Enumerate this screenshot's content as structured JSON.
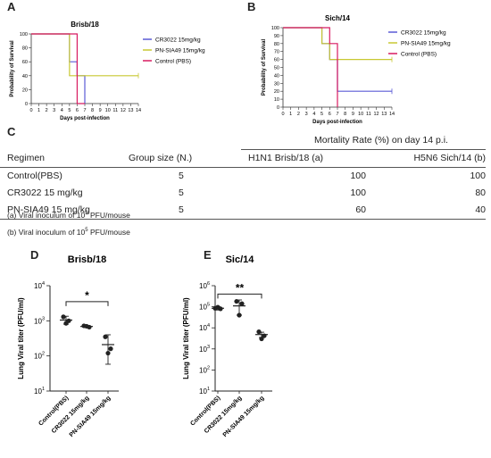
{
  "panels": {
    "a": "A",
    "b": "B",
    "c": "C",
    "d": "D",
    "e": "E"
  },
  "chart_data": [
    {
      "id": "A",
      "type": "line",
      "step": true,
      "title": "Brisb/18",
      "xlabel": "Days post-infection",
      "ylabel": "Probability of Survival",
      "xlim": [
        0,
        14
      ],
      "ylim": [
        0,
        100
      ],
      "xticks": [
        0,
        1,
        2,
        3,
        4,
        5,
        6,
        7,
        8,
        9,
        10,
        11,
        12,
        13,
        14
      ],
      "yticks": [
        0,
        20,
        40,
        60,
        80,
        100
      ],
      "legend_position": "right",
      "series": [
        {
          "name": "CR3022 15mg/kg",
          "color": "#5b5bd6",
          "x": [
            0,
            5,
            5,
            6,
            6,
            7,
            7
          ],
          "y": [
            100,
            100,
            60,
            60,
            40,
            40,
            0
          ]
        },
        {
          "name": "PN-SIA49 15mg/kg",
          "color": "#c8c832",
          "x": [
            0,
            5,
            5,
            14
          ],
          "y": [
            100,
            100,
            40,
            40
          ]
        },
        {
          "name": "Control (PBS)",
          "color": "#d81b60",
          "x": [
            0,
            6,
            6,
            7
          ],
          "y": [
            100,
            100,
            0,
            0
          ]
        }
      ]
    },
    {
      "id": "B",
      "type": "line",
      "step": true,
      "title": "Sich/14",
      "xlabel": "Days post-infection",
      "ylabel": "Probability of Survival",
      "xlim": [
        0,
        14
      ],
      "ylim": [
        0,
        100
      ],
      "xticks": [
        0,
        1,
        2,
        3,
        4,
        5,
        6,
        7,
        8,
        9,
        10,
        11,
        12,
        13,
        14
      ],
      "yticks": [
        0,
        10,
        20,
        30,
        40,
        50,
        60,
        70,
        80,
        90,
        100
      ],
      "legend_position": "right",
      "series": [
        {
          "name": "CR3022 15mg/kg",
          "color": "#5b5bd6",
          "x": [
            0,
            5,
            5,
            6,
            6,
            7,
            7,
            14
          ],
          "y": [
            100,
            100,
            80,
            80,
            60,
            60,
            20,
            20
          ]
        },
        {
          "name": "PN-SIA49 15mg/kg",
          "color": "#c8c832",
          "x": [
            0,
            5,
            5,
            6,
            6,
            14
          ],
          "y": [
            100,
            100,
            80,
            80,
            60,
            60
          ]
        },
        {
          "name": "Control (PBS)",
          "color": "#d81b60",
          "x": [
            0,
            6,
            6,
            7,
            7
          ],
          "y": [
            100,
            100,
            80,
            80,
            0
          ]
        }
      ]
    },
    {
      "id": "C",
      "type": "table",
      "span_header": "Mortality Rate (%) on day 14 p.i.",
      "columns": [
        "Regimen",
        "Group size (N.)",
        "H1N1 Brisb/18 (a)",
        "H5N6 Sich/14 (b)"
      ],
      "rows": [
        [
          "Control(PBS)",
          "5",
          "100",
          "100"
        ],
        [
          "CR3022 15 mg/kg",
          "5",
          "100",
          "80"
        ],
        [
          "PN-SIA49 15 mg/kg",
          "5",
          "60",
          "40"
        ]
      ],
      "notes": [
        {
          "prefix": "(a) Viral inoculum of 10",
          "sup": "5",
          "suffix": " PFU/mouse"
        },
        {
          "prefix": "(b) Viral inoculum of 10",
          "sup": "5",
          "suffix": " PFU/mouse"
        }
      ]
    },
    {
      "id": "D",
      "type": "scatter",
      "title": "Brisb/18",
      "ylabel": "Lung Viral titer (PFU/ml)",
      "yscale": "log",
      "ylim": [
        10,
        10000
      ],
      "yticks": [
        {
          "v": 10,
          "base": "10",
          "exp": "1"
        },
        {
          "v": 100,
          "base": "10",
          "exp": "2"
        },
        {
          "v": 1000,
          "base": "10",
          "exp": "3"
        },
        {
          "v": 10000,
          "base": "10",
          "exp": "4"
        }
      ],
      "categories": [
        "Control(PBS)",
        "CR3022 15mg/kg",
        "PN-SIA49 15mg/kg"
      ],
      "groups": [
        {
          "points": [
            1300,
            1000,
            850
          ],
          "mean": 1050,
          "err": [
            800,
            1350
          ]
        },
        {
          "points": [
            720,
            660,
            700
          ],
          "mean": 690,
          "err": [
            650,
            730
          ]
        },
        {
          "points": [
            350,
            160,
            120
          ],
          "mean": 210,
          "err": [
            58,
            400
          ]
        }
      ],
      "significance": {
        "between": [
          0,
          2
        ],
        "label": "*",
        "level": 3500
      }
    },
    {
      "id": "E",
      "type": "scatter",
      "title": "Sic/14",
      "ylabel": "Lung Viral titer (PFU/ml)",
      "yscale": "log",
      "ylim": [
        10,
        1000000
      ],
      "yticks": [
        {
          "v": 10,
          "base": "10",
          "exp": "1"
        },
        {
          "v": 100,
          "base": "10",
          "exp": "2"
        },
        {
          "v": 1000,
          "base": "10",
          "exp": "3"
        },
        {
          "v": 10000,
          "base": "10",
          "exp": "4"
        },
        {
          "v": 100000,
          "base": "10",
          "exp": "5"
        },
        {
          "v": 1000000,
          "base": "10",
          "exp": "6"
        }
      ],
      "categories": [
        "Control(PBS)",
        "CR3022 15mg/kg",
        "PN-SIA49 15mg/kg"
      ],
      "groups": [
        {
          "points": [
            85000,
            80000,
            95000
          ],
          "mean": 85000,
          "err": [
            70000,
            100000
          ]
        },
        {
          "points": [
            180000,
            140000,
            40000
          ],
          "mean": 110000,
          "err": [
            40000,
            210000
          ]
        },
        {
          "points": [
            6500,
            4200,
            3000
          ],
          "mean": 4800,
          "err": [
            3500,
            6200
          ]
        }
      ],
      "significance": {
        "between": [
          0,
          2
        ],
        "label": "**",
        "level": 400000
      }
    }
  ]
}
